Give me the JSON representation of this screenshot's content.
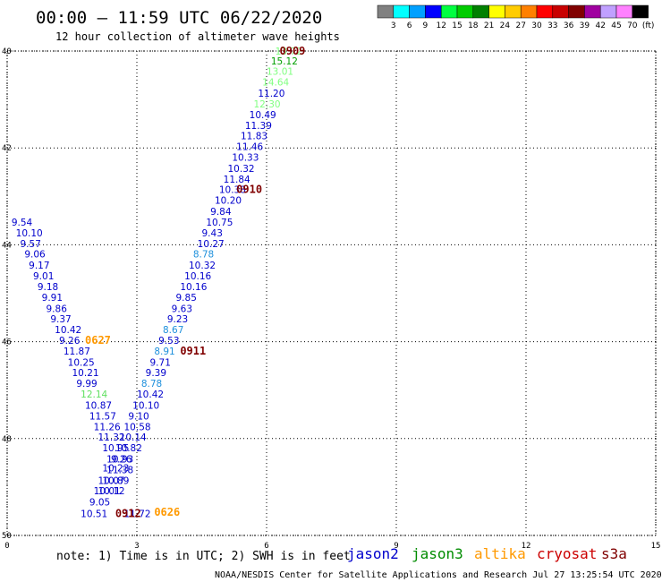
{
  "title": "00:00 — 11:59 UTC 06/22/2020",
  "subtitle": "12 hour collection of altimeter wave heights",
  "legend_scale": {
    "colors": [
      "#808080",
      "#00ffff",
      "#00a0ff",
      "#0000ff",
      "#00ff40",
      "#00cc00",
      "#008000",
      "#ffff00",
      "#ffcc00",
      "#ff8000",
      "#ff0000",
      "#c80000",
      "#800000",
      "#a000a0",
      "#c0a0ff",
      "#ff80ff",
      "#000000"
    ],
    "labels": [
      "3",
      "6",
      "9",
      "12",
      "15",
      "18",
      "21",
      "24",
      "27",
      "30",
      "33",
      "36",
      "39",
      "42",
      "45",
      "70",
      "(ft)"
    ]
  },
  "note": "note: 1) Time is in UTC; 2) SWH is in feet",
  "satellites": [
    {
      "name": "jason2",
      "color": "#0000cc"
    },
    {
      "name": "jason3",
      "color": "#008c00"
    },
    {
      "name": "altika",
      "color": "#ff9900"
    },
    {
      "name": "cryosat",
      "color": "#cc0000"
    },
    {
      "name": "s3a",
      "color": "#800000"
    }
  ],
  "credit": "NOAA/NESDIS Center for Satellite Applications and Research    Jul 27 13:25:54 UTC 2020",
  "chart_data": {
    "type": "scatter",
    "x_ticks": [
      "0",
      "3",
      "6",
      "9",
      "12",
      "15"
    ],
    "y_ticks": [
      "40",
      "42",
      "44",
      "46",
      "48",
      "50"
    ],
    "xlim": [
      0,
      15
    ],
    "ylim": [
      40,
      50
    ],
    "grid": true,
    "points": [
      {
        "x": 6.2,
        "y": 40.0,
        "v": "13.72",
        "c": "#80ff80"
      },
      {
        "x": 6.1,
        "y": 40.2,
        "v": "15.12",
        "c": "#00a000"
      },
      {
        "x": 6.0,
        "y": 40.42,
        "v": "13.01",
        "c": "#80ff80"
      },
      {
        "x": 5.9,
        "y": 40.64,
        "v": "14.64",
        "c": "#80ff80"
      },
      {
        "x": 5.8,
        "y": 40.87,
        "v": "11.20",
        "c": "#0000cc"
      },
      {
        "x": 5.7,
        "y": 41.09,
        "v": "12.30",
        "c": "#80ff80"
      },
      {
        "x": 5.6,
        "y": 41.31,
        "v": "10.49",
        "c": "#0000cc"
      },
      {
        "x": 5.5,
        "y": 41.53,
        "v": "11.39",
        "c": "#0000cc"
      },
      {
        "x": 5.4,
        "y": 41.75,
        "v": "11.83",
        "c": "#0000cc"
      },
      {
        "x": 5.3,
        "y": 41.97,
        "v": "11.46",
        "c": "#0000cc"
      },
      {
        "x": 5.2,
        "y": 42.19,
        "v": "10.33",
        "c": "#0000cc"
      },
      {
        "x": 5.1,
        "y": 42.42,
        "v": "10.32",
        "c": "#0000cc"
      },
      {
        "x": 5.0,
        "y": 42.64,
        "v": "11.84",
        "c": "#0000cc"
      },
      {
        "x": 4.9,
        "y": 42.86,
        "v": "10.38",
        "c": "#0000cc"
      },
      {
        "x": 4.8,
        "y": 43.08,
        "v": "10.20",
        "c": "#0000cc"
      },
      {
        "x": 4.7,
        "y": 43.31,
        "v": "9.84",
        "c": "#0000cc"
      },
      {
        "x": 4.6,
        "y": 43.53,
        "v": "10.75",
        "c": "#0000cc"
      },
      {
        "x": 4.5,
        "y": 43.75,
        "v": "9.43",
        "c": "#0000cc"
      },
      {
        "x": 4.4,
        "y": 43.97,
        "v": "10.27",
        "c": "#0000cc"
      },
      {
        "x": 4.3,
        "y": 44.19,
        "v": "8.78",
        "c": "#1e90dc"
      },
      {
        "x": 4.2,
        "y": 44.42,
        "v": "10.32",
        "c": "#0000cc"
      },
      {
        "x": 4.1,
        "y": 44.64,
        "v": "10.16",
        "c": "#0000cc"
      },
      {
        "x": 4.0,
        "y": 44.86,
        "v": "10.16",
        "c": "#0000cc"
      },
      {
        "x": 3.9,
        "y": 45.08,
        "v": "9.85",
        "c": "#0000cc"
      },
      {
        "x": 3.8,
        "y": 45.31,
        "v": "9.63",
        "c": "#0000cc"
      },
      {
        "x": 3.7,
        "y": 45.53,
        "v": "9.23",
        "c": "#0000cc"
      },
      {
        "x": 3.6,
        "y": 45.75,
        "v": "8.67",
        "c": "#1e90dc"
      },
      {
        "x": 3.5,
        "y": 45.97,
        "v": "9.53",
        "c": "#0000cc"
      },
      {
        "x": 3.4,
        "y": 46.19,
        "v": "8.91",
        "c": "#1e90dc"
      },
      {
        "x": 3.3,
        "y": 46.42,
        "v": "9.71",
        "c": "#0000cc"
      },
      {
        "x": 3.2,
        "y": 46.64,
        "v": "9.39",
        "c": "#0000cc"
      },
      {
        "x": 3.1,
        "y": 46.86,
        "v": "8.78",
        "c": "#1e90dc"
      },
      {
        "x": 3.0,
        "y": 47.08,
        "v": "10.42",
        "c": "#0000cc"
      },
      {
        "x": 2.9,
        "y": 47.31,
        "v": "10.10",
        "c": "#0000cc"
      },
      {
        "x": 2.8,
        "y": 47.53,
        "v": "9.10",
        "c": "#0000cc"
      },
      {
        "x": 2.7,
        "y": 47.75,
        "v": "10.58",
        "c": "#0000cc"
      },
      {
        "x": 2.6,
        "y": 47.97,
        "v": "10.14",
        "c": "#0000cc"
      },
      {
        "x": 2.5,
        "y": 48.19,
        "v": "10.82",
        "c": "#0000cc"
      },
      {
        "x": 2.4,
        "y": 48.42,
        "v": "9.26",
        "c": "#0000cc"
      },
      {
        "x": 2.3,
        "y": 48.64,
        "v": "11.38",
        "c": "#0000cc"
      },
      {
        "x": 2.2,
        "y": 48.86,
        "v": "10.89",
        "c": "#0000cc"
      },
      {
        "x": 2.1,
        "y": 49.08,
        "v": "10.12",
        "c": "#0000cc"
      },
      {
        "x": 0.1,
        "y": 43.53,
        "v": "9.54",
        "c": "#0000cc"
      },
      {
        "x": 0.2,
        "y": 43.75,
        "v": "10.10",
        "c": "#0000cc"
      },
      {
        "x": 0.3,
        "y": 43.97,
        "v": "9.57",
        "c": "#0000cc"
      },
      {
        "x": 0.4,
        "y": 44.19,
        "v": "9.06",
        "c": "#0000cc"
      },
      {
        "x": 0.5,
        "y": 44.42,
        "v": "9.17",
        "c": "#0000cc"
      },
      {
        "x": 0.6,
        "y": 44.64,
        "v": "9.01",
        "c": "#0000cc"
      },
      {
        "x": 0.7,
        "y": 44.86,
        "v": "9.18",
        "c": "#0000cc"
      },
      {
        "x": 0.8,
        "y": 45.08,
        "v": "9.91",
        "c": "#0000cc"
      },
      {
        "x": 0.9,
        "y": 45.31,
        "v": "9.86",
        "c": "#0000cc"
      },
      {
        "x": 1.0,
        "y": 45.53,
        "v": "9.37",
        "c": "#0000cc"
      },
      {
        "x": 1.1,
        "y": 45.75,
        "v": "10.42",
        "c": "#0000cc"
      },
      {
        "x": 1.2,
        "y": 45.97,
        "v": "9.26",
        "c": "#0000cc"
      },
      {
        "x": 1.3,
        "y": 46.19,
        "v": "11.87",
        "c": "#0000cc"
      },
      {
        "x": 1.4,
        "y": 46.42,
        "v": "10.25",
        "c": "#0000cc"
      },
      {
        "x": 1.5,
        "y": 46.64,
        "v": "10.21",
        "c": "#0000cc"
      },
      {
        "x": 1.6,
        "y": 46.86,
        "v": "9.99",
        "c": "#0000cc"
      },
      {
        "x": 1.7,
        "y": 47.08,
        "v": "12.14",
        "c": "#60e060"
      },
      {
        "x": 1.8,
        "y": 47.31,
        "v": "10.87",
        "c": "#0000cc"
      },
      {
        "x": 1.9,
        "y": 47.53,
        "v": "11.57",
        "c": "#0000cc"
      },
      {
        "x": 2.0,
        "y": 47.75,
        "v": "11.26",
        "c": "#0000cc"
      },
      {
        "x": 2.1,
        "y": 47.97,
        "v": "11.32",
        "c": "#0000cc"
      },
      {
        "x": 2.2,
        "y": 48.19,
        "v": "10.95",
        "c": "#0000cc"
      },
      {
        "x": 2.3,
        "y": 48.42,
        "v": "10.93",
        "c": "#0000cc"
      },
      {
        "x": 2.2,
        "y": 48.6,
        "v": "10.23",
        "c": "#0000cc"
      },
      {
        "x": 2.1,
        "y": 48.86,
        "v": "10.07",
        "c": "#0000cc"
      },
      {
        "x": 2.0,
        "y": 49.08,
        "v": "10.01",
        "c": "#0000cc"
      },
      {
        "x": 1.9,
        "y": 49.31,
        "v": "9.05",
        "c": "#0000cc"
      },
      {
        "x": 1.7,
        "y": 49.55,
        "v": "10.51",
        "c": "#0000cc"
      },
      {
        "x": 2.7,
        "y": 49.55,
        "v": "11.72",
        "c": "#0000cc"
      }
    ],
    "pass_labels": [
      {
        "x": 6.3,
        "y": 40.0,
        "text": "0909",
        "c": "#800000"
      },
      {
        "x": 5.3,
        "y": 42.86,
        "text": "0910",
        "c": "#800000"
      },
      {
        "x": 4.0,
        "y": 46.19,
        "text": "0911",
        "c": "#800000"
      },
      {
        "x": 1.8,
        "y": 45.97,
        "text": "0627",
        "c": "#ff9900"
      },
      {
        "x": 3.4,
        "y": 49.52,
        "text": "0626",
        "c": "#ff9900"
      },
      {
        "x": 2.5,
        "y": 49.55,
        "text": "0912",
        "c": "#800000"
      }
    ]
  }
}
